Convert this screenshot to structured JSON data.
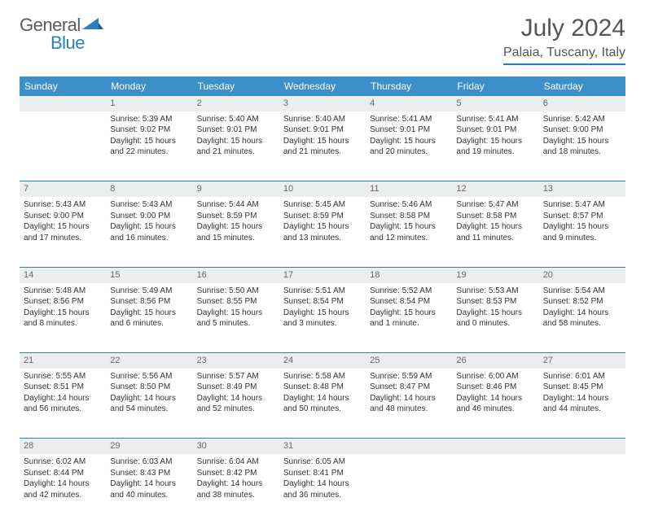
{
  "logo": {
    "text1": "General",
    "text2": "Blue"
  },
  "title": "July 2024",
  "location": "Palaia, Tuscany, Italy",
  "colors": {
    "header_bg": "#3d8fc9",
    "rule": "#2a7fbf",
    "daynum_bg": "#eceeee",
    "text": "#333333",
    "title_text": "#555555"
  },
  "day_headers": [
    "Sunday",
    "Monday",
    "Tuesday",
    "Wednesday",
    "Thursday",
    "Friday",
    "Saturday"
  ],
  "weeks": [
    {
      "nums": [
        "",
        "1",
        "2",
        "3",
        "4",
        "5",
        "6"
      ],
      "cells": [
        [],
        [
          "Sunrise: 5:39 AM",
          "Sunset: 9:02 PM",
          "Daylight: 15 hours",
          "and 22 minutes."
        ],
        [
          "Sunrise: 5:40 AM",
          "Sunset: 9:01 PM",
          "Daylight: 15 hours",
          "and 21 minutes."
        ],
        [
          "Sunrise: 5:40 AM",
          "Sunset: 9:01 PM",
          "Daylight: 15 hours",
          "and 21 minutes."
        ],
        [
          "Sunrise: 5:41 AM",
          "Sunset: 9:01 PM",
          "Daylight: 15 hours",
          "and 20 minutes."
        ],
        [
          "Sunrise: 5:41 AM",
          "Sunset: 9:01 PM",
          "Daylight: 15 hours",
          "and 19 minutes."
        ],
        [
          "Sunrise: 5:42 AM",
          "Sunset: 9:00 PM",
          "Daylight: 15 hours",
          "and 18 minutes."
        ]
      ]
    },
    {
      "nums": [
        "7",
        "8",
        "9",
        "10",
        "11",
        "12",
        "13"
      ],
      "cells": [
        [
          "Sunrise: 5:43 AM",
          "Sunset: 9:00 PM",
          "Daylight: 15 hours",
          "and 17 minutes."
        ],
        [
          "Sunrise: 5:43 AM",
          "Sunset: 9:00 PM",
          "Daylight: 15 hours",
          "and 16 minutes."
        ],
        [
          "Sunrise: 5:44 AM",
          "Sunset: 8:59 PM",
          "Daylight: 15 hours",
          "and 15 minutes."
        ],
        [
          "Sunrise: 5:45 AM",
          "Sunset: 8:59 PM",
          "Daylight: 15 hours",
          "and 13 minutes."
        ],
        [
          "Sunrise: 5:46 AM",
          "Sunset: 8:58 PM",
          "Daylight: 15 hours",
          "and 12 minutes."
        ],
        [
          "Sunrise: 5:47 AM",
          "Sunset: 8:58 PM",
          "Daylight: 15 hours",
          "and 11 minutes."
        ],
        [
          "Sunrise: 5:47 AM",
          "Sunset: 8:57 PM",
          "Daylight: 15 hours",
          "and 9 minutes."
        ]
      ]
    },
    {
      "nums": [
        "14",
        "15",
        "16",
        "17",
        "18",
        "19",
        "20"
      ],
      "cells": [
        [
          "Sunrise: 5:48 AM",
          "Sunset: 8:56 PM",
          "Daylight: 15 hours",
          "and 8 minutes."
        ],
        [
          "Sunrise: 5:49 AM",
          "Sunset: 8:56 PM",
          "Daylight: 15 hours",
          "and 6 minutes."
        ],
        [
          "Sunrise: 5:50 AM",
          "Sunset: 8:55 PM",
          "Daylight: 15 hours",
          "and 5 minutes."
        ],
        [
          "Sunrise: 5:51 AM",
          "Sunset: 8:54 PM",
          "Daylight: 15 hours",
          "and 3 minutes."
        ],
        [
          "Sunrise: 5:52 AM",
          "Sunset: 8:54 PM",
          "Daylight: 15 hours",
          "and 1 minute."
        ],
        [
          "Sunrise: 5:53 AM",
          "Sunset: 8:53 PM",
          "Daylight: 15 hours",
          "and 0 minutes."
        ],
        [
          "Sunrise: 5:54 AM",
          "Sunset: 8:52 PM",
          "Daylight: 14 hours",
          "and 58 minutes."
        ]
      ]
    },
    {
      "nums": [
        "21",
        "22",
        "23",
        "24",
        "25",
        "26",
        "27"
      ],
      "cells": [
        [
          "Sunrise: 5:55 AM",
          "Sunset: 8:51 PM",
          "Daylight: 14 hours",
          "and 56 minutes."
        ],
        [
          "Sunrise: 5:56 AM",
          "Sunset: 8:50 PM",
          "Daylight: 14 hours",
          "and 54 minutes."
        ],
        [
          "Sunrise: 5:57 AM",
          "Sunset: 8:49 PM",
          "Daylight: 14 hours",
          "and 52 minutes."
        ],
        [
          "Sunrise: 5:58 AM",
          "Sunset: 8:48 PM",
          "Daylight: 14 hours",
          "and 50 minutes."
        ],
        [
          "Sunrise: 5:59 AM",
          "Sunset: 8:47 PM",
          "Daylight: 14 hours",
          "and 48 minutes."
        ],
        [
          "Sunrise: 6:00 AM",
          "Sunset: 8:46 PM",
          "Daylight: 14 hours",
          "and 46 minutes."
        ],
        [
          "Sunrise: 6:01 AM",
          "Sunset: 8:45 PM",
          "Daylight: 14 hours",
          "and 44 minutes."
        ]
      ]
    },
    {
      "nums": [
        "28",
        "29",
        "30",
        "31",
        "",
        "",
        ""
      ],
      "cells": [
        [
          "Sunrise: 6:02 AM",
          "Sunset: 8:44 PM",
          "Daylight: 14 hours",
          "and 42 minutes."
        ],
        [
          "Sunrise: 6:03 AM",
          "Sunset: 8:43 PM",
          "Daylight: 14 hours",
          "and 40 minutes."
        ],
        [
          "Sunrise: 6:04 AM",
          "Sunset: 8:42 PM",
          "Daylight: 14 hours",
          "and 38 minutes."
        ],
        [
          "Sunrise: 6:05 AM",
          "Sunset: 8:41 PM",
          "Daylight: 14 hours",
          "and 36 minutes."
        ],
        [],
        [],
        []
      ]
    }
  ]
}
